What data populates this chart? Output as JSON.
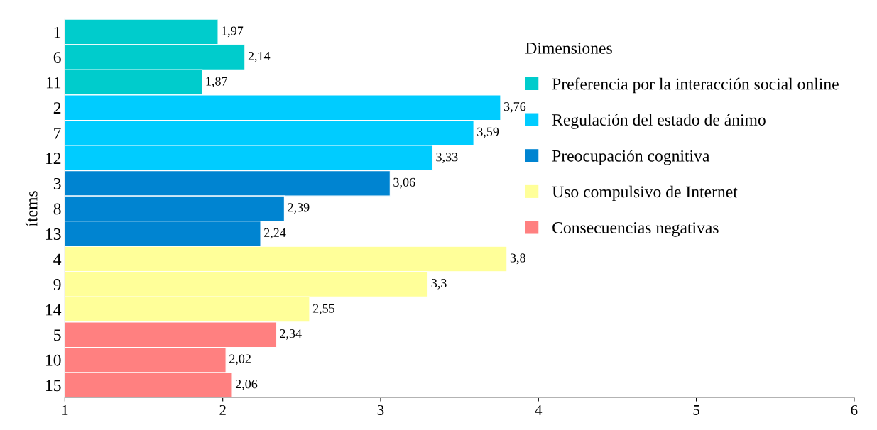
{
  "chart_data": {
    "type": "bar",
    "orientation": "horizontal",
    "ylabel": "ítems",
    "legend_title": "Dimensiones",
    "legend": "upper right",
    "grid": false,
    "categories": [
      "1",
      "6",
      "11",
      "2",
      "7",
      "12",
      "3",
      "8",
      "13",
      "4",
      "9",
      "14",
      "5",
      "10",
      "15"
    ],
    "xlim": [
      1,
      6
    ],
    "xticks": [
      1,
      2,
      3,
      4,
      5,
      6
    ],
    "series": [
      {
        "name": "Preferencia por la interacción social online",
        "color": "#00cccc",
        "values": [
          1.97,
          2.14,
          1.87,
          null,
          null,
          null,
          null,
          null,
          null,
          null,
          null,
          null,
          null,
          null,
          null
        ],
        "value_labels": [
          "1,97",
          "2,14",
          "1,87",
          null,
          null,
          null,
          null,
          null,
          null,
          null,
          null,
          null,
          null,
          null,
          null
        ]
      },
      {
        "name": "Regulación del estado de ánimo",
        "color": "#00ccff",
        "values": [
          null,
          null,
          null,
          3.76,
          3.59,
          3.33,
          null,
          null,
          null,
          null,
          null,
          null,
          null,
          null,
          null
        ],
        "value_labels": [
          null,
          null,
          null,
          "3,76",
          "3,59",
          "3,33",
          null,
          null,
          null,
          null,
          null,
          null,
          null,
          null,
          null
        ]
      },
      {
        "name": "Preocupación cognitiva",
        "color": "#0084d1",
        "values": [
          null,
          null,
          null,
          null,
          null,
          null,
          3.06,
          2.39,
          2.24,
          null,
          null,
          null,
          null,
          null,
          null
        ],
        "value_labels": [
          null,
          null,
          null,
          null,
          null,
          null,
          "3,06",
          "2,39",
          "2,24",
          null,
          null,
          null,
          null,
          null,
          null
        ]
      },
      {
        "name": "Uso compulsivo de Internet",
        "color": "#ffff99",
        "values": [
          null,
          null,
          null,
          null,
          null,
          null,
          null,
          null,
          null,
          3.8,
          3.3,
          2.55,
          null,
          null,
          null
        ],
        "value_labels": [
          null,
          null,
          null,
          null,
          null,
          null,
          null,
          null,
          null,
          "3,8",
          "3,3",
          "2,55",
          null,
          null,
          null
        ]
      },
      {
        "name": "Consecuencias negativas",
        "color": "#ff8080",
        "values": [
          null,
          null,
          null,
          null,
          null,
          null,
          null,
          null,
          null,
          null,
          null,
          null,
          2.34,
          2.02,
          2.06
        ],
        "value_labels": [
          null,
          null,
          null,
          null,
          null,
          null,
          null,
          null,
          null,
          null,
          null,
          null,
          "2,34",
          "2,02",
          "2,06"
        ]
      }
    ]
  }
}
